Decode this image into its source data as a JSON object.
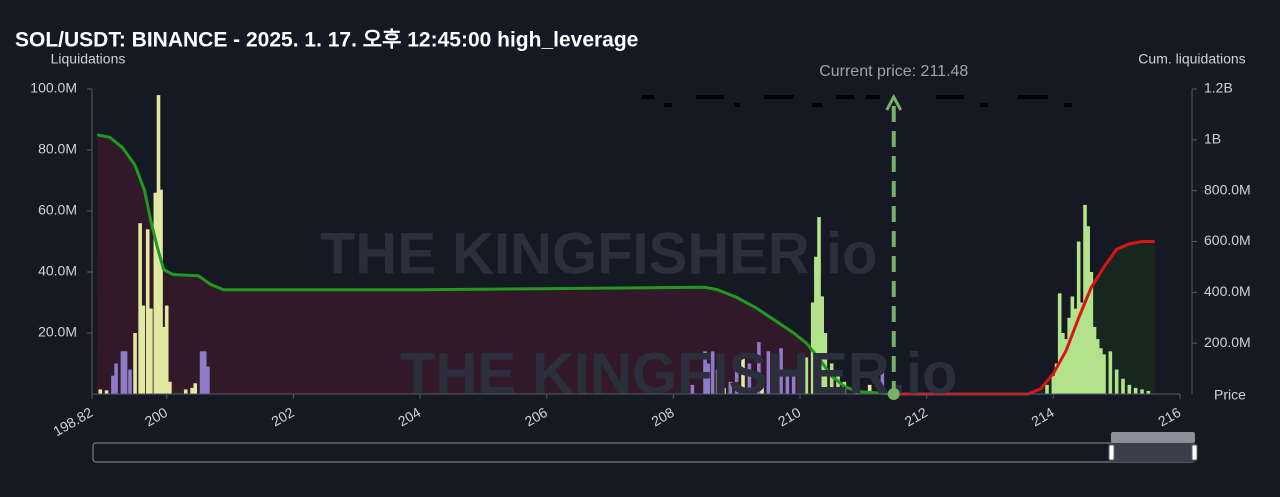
{
  "chart_data": {
    "type": "bar",
    "title": "SOL/USDT: BINANCE - 2025. 1. 17. 오후 12:45:00 high_leverage",
    "y_label": "Liquidations",
    "y2_label": "Cum. liquidations",
    "x_label": "Price",
    "watermark": "THE KINGFISHER.io",
    "current_price": {
      "label": "Current price: 211.48",
      "value": 211.48,
      "color": "#78b068"
    },
    "xlim": [
      198.82,
      216
    ],
    "xticks": [
      198.82,
      200,
      202,
      204,
      206,
      208,
      210,
      212,
      214,
      216
    ],
    "ylim": [
      0,
      100000000
    ],
    "yticks": [
      {
        "value": 20000000,
        "label": "20.0M"
      },
      {
        "value": 40000000,
        "label": "40.0M"
      },
      {
        "value": 60000000,
        "label": "60.0M"
      },
      {
        "value": 80000000,
        "label": "80.0M"
      },
      {
        "value": 100000000,
        "label": "100.0M"
      }
    ],
    "y2lim": [
      0,
      1200000000
    ],
    "y2ticks": [
      {
        "value": 200000000,
        "label": "200.0M"
      },
      {
        "value": 400000000,
        "label": "400.0M"
      },
      {
        "value": 600000000,
        "label": "600.0M"
      },
      {
        "value": 800000000,
        "label": "800.0M"
      },
      {
        "value": 1000000000,
        "label": "1B"
      },
      {
        "value": 1200000000,
        "label": "1.2B"
      }
    ],
    "series": [
      {
        "type": "bar",
        "color": "#8e7cc8",
        "x": [
          199.15,
          199.2,
          199.3,
          199.35,
          199.42,
          200.55,
          200.6,
          200.65,
          208.3,
          208.5,
          208.55,
          208.62,
          208.9,
          209.0,
          209.2,
          209.35,
          209.5,
          209.6,
          209.7,
          209.8,
          209.9,
          211.3
        ],
        "values": [
          6000000,
          10000000,
          14000000,
          14000000,
          8000000,
          14000000,
          14000000,
          9000000,
          3000000,
          14000000,
          10000000,
          14000000,
          4000000,
          8000000,
          10000000,
          17000000,
          14000000,
          9000000,
          15000000,
          8000000,
          6000000,
          9000000
        ]
      },
      {
        "type": "bar",
        "color": "#e2e9a2",
        "x": [
          198.95,
          199.05,
          199.5,
          199.58,
          199.63,
          199.7,
          199.75,
          199.82,
          199.87,
          199.91,
          199.95,
          200.0,
          200.05,
          200.3,
          200.4,
          200.45,
          208.7,
          208.8,
          209.1,
          209.4,
          210.0,
          210.9,
          211.1
        ],
        "values": [
          1500000,
          1200000,
          20000000,
          56000000,
          29000000,
          54000000,
          28000000,
          66000000,
          98000000,
          67000000,
          22000000,
          29000000,
          4000000,
          1500000,
          2000000,
          3500000,
          8000000,
          2000000,
          12000000,
          6000000,
          5000000,
          3000000,
          3000000
        ]
      },
      {
        "type": "bar",
        "color": "#b4e28c",
        "x": [
          210.1,
          210.2,
          210.25,
          210.3,
          210.35,
          210.4,
          210.5,
          210.6,
          210.7,
          213.9,
          214.0,
          214.05,
          214.1,
          214.15,
          214.2,
          214.25,
          214.3,
          214.35,
          214.4,
          214.45,
          214.5,
          214.55,
          214.6,
          214.65,
          214.7,
          214.75,
          214.8,
          214.9,
          215.0,
          215.1,
          215.2,
          215.3,
          215.4,
          215.5
        ],
        "values": [
          12000000,
          30000000,
          45000000,
          58000000,
          32000000,
          20000000,
          10000000,
          6000000,
          4000000,
          3000000,
          6000000,
          10000000,
          33000000,
          20000000,
          18000000,
          25000000,
          32000000,
          28000000,
          50000000,
          30000000,
          62000000,
          55000000,
          40000000,
          22000000,
          18000000,
          15000000,
          13000000,
          14000000,
          8000000,
          5000000,
          3000000,
          2000000,
          1500000,
          1000000
        ]
      },
      {
        "type": "line",
        "axis": "y2",
        "color": "#1f9a1f",
        "fill": "#35192a",
        "x": [
          198.9,
          199.1,
          199.3,
          199.5,
          199.65,
          199.75,
          199.85,
          199.95,
          200.1,
          200.5,
          200.7,
          200.9,
          204,
          208.5,
          208.7,
          209,
          209.3,
          209.6,
          209.9,
          210.1,
          210.3,
          210.5,
          210.7,
          210.9,
          211.48
        ],
        "values": [
          1020000000,
          1010000000,
          970000000,
          900000000,
          800000000,
          680000000,
          580000000,
          490000000,
          470000000,
          465000000,
          430000000,
          410000000,
          410000000,
          420000000,
          410000000,
          380000000,
          340000000,
          290000000,
          240000000,
          200000000,
          140000000,
          70000000,
          30000000,
          10000000,
          0
        ]
      },
      {
        "type": "line",
        "axis": "y2",
        "color": "#dd1414",
        "fill": "#17291f",
        "x": [
          211.48,
          213.6,
          213.8,
          214.0,
          214.2,
          214.4,
          214.6,
          214.8,
          215.0,
          215.2,
          215.4,
          215.6
        ],
        "values": [
          0,
          0,
          20000000,
          80000000,
          170000000,
          300000000,
          420000000,
          500000000,
          570000000,
          590000000,
          600000000,
          600000000
        ]
      }
    ]
  }
}
